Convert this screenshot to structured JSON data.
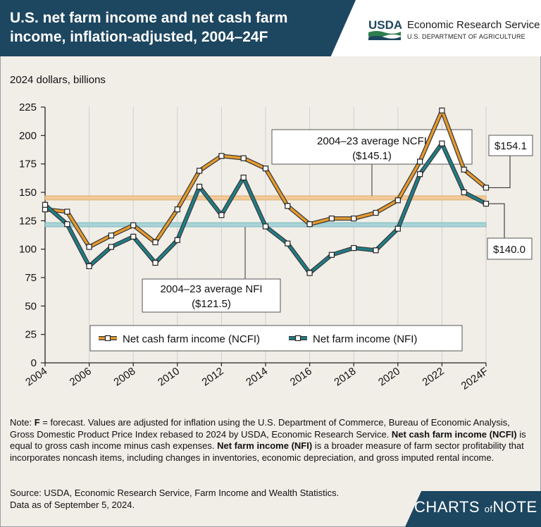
{
  "header": {
    "title": "U.S. net farm income and net cash farm income, inflation-adjusted, 2004–24F",
    "agency_logo_text": "USDA",
    "agency_name": "Economic Research Service",
    "department": "U.S. DEPARTMENT OF AGRICULTURE"
  },
  "chart_data": {
    "type": "line",
    "ylabel": "2024 dollars, billions",
    "ylim": [
      0,
      225
    ],
    "yticks": [
      0,
      25,
      50,
      75,
      100,
      125,
      150,
      175,
      200,
      225
    ],
    "x": [
      "2004",
      "2005",
      "2006",
      "2007",
      "2008",
      "2009",
      "2010",
      "2011",
      "2012",
      "2013",
      "2014",
      "2015",
      "2016",
      "2017",
      "2018",
      "2019",
      "2020",
      "2021",
      "2022",
      "2023",
      "2024F"
    ],
    "x_tick_labels": [
      "2004",
      "2006",
      "2008",
      "2010",
      "2012",
      "2014",
      "2016",
      "2018",
      "2020",
      "2022",
      "2024F"
    ],
    "grid": "vertical lines at year ticks",
    "series": [
      {
        "name": "Net cash farm income (NCFI)",
        "color": "#e69a2d",
        "values": [
          135,
          133,
          102,
          112,
          121,
          106,
          135,
          169,
          182,
          180,
          171,
          138,
          122,
          127,
          127,
          132,
          143,
          177,
          222,
          170,
          154.1
        ]
      },
      {
        "name": "Net farm income (NFI)",
        "color": "#1f7e86",
        "values": [
          139,
          122,
          85,
          102,
          111,
          88,
          108,
          155,
          130,
          163,
          120,
          105,
          79,
          95,
          101,
          99,
          118,
          166,
          193,
          150,
          140.0
        ]
      }
    ],
    "reference_lines": [
      {
        "label": "2004–23 average NCFI",
        "value_label": "($145.1)",
        "value": 145.1,
        "color": "#f2c998"
      },
      {
        "label": "2004–23 average NFI",
        "value_label": "($121.5)",
        "value": 121.5,
        "color": "#a9d3d6"
      }
    ],
    "annotations": [
      {
        "text": "$154.1",
        "series": "Net cash farm income (NCFI)",
        "x": "2024F"
      },
      {
        "text": "$140.0",
        "series": "Net farm income (NFI)",
        "x": "2024F"
      }
    ],
    "legend": "bottom-center"
  },
  "footer": {
    "note_prefix": "Note: ",
    "note_f": "F",
    "note_1": " = forecast. Values are adjusted for inflation using the U.S. Department of Commerce, Bureau of Economic Analysis, Gross Domestic Product Price Index rebased to 2024 by USDA, Economic Research Service. ",
    "note_ncfi_term": "Net cash farm income (NCFI)",
    "note_2": " is equal to gross cash income minus cash expenses. ",
    "note_nfi_term": "Net farm income (NFI)",
    "note_3": " is a broader measure of farm sector profitability that incorporates noncash items, including changes in inventories, economic depreciation, and gross imputed rental income.",
    "source_line1": "Source: USDA, Economic Research Service, Farm Income and Wealth Statistics.",
    "source_line2": "Data as of September 5, 2024.",
    "brand_charts": "CHARTS",
    "brand_of": "of",
    "brand_note": "NOTE"
  }
}
